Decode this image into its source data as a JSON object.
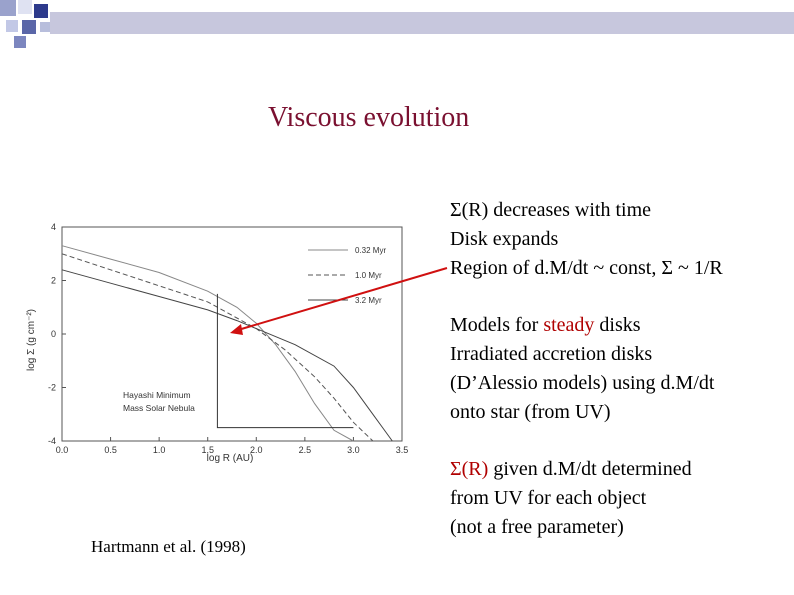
{
  "slide": {
    "title": "Viscous evolution",
    "caption": "Hartmann et al. (1998)",
    "colors": {
      "title": "#7a1030",
      "accent_red": "#b00000",
      "arrow": "#d01010",
      "deco_bar": "#c7c7dd"
    }
  },
  "block1": {
    "line1_sigma": "Σ",
    "line1_rest": "(R) decreases with time",
    "line2": "Disk expands",
    "line3": "Region of d.M/dt ~ const, Σ ~ 1/R"
  },
  "block2": {
    "line1_pre": "Models for ",
    "line1_red": "steady",
    "line1_post": " disks",
    "line2": "Irradiated accretion disks",
    "line3": "(D’Alessio models) using d.M/dt",
    "line4": "onto star (from UV)"
  },
  "block3": {
    "line1_red": "Σ(R)",
    "line1_post": " given d.M/dt determined",
    "line2": "from UV for each object",
    "line3": "(not a free parameter)"
  },
  "figure": {
    "ylabel": "log Σ (g cm⁻²)",
    "xlabel": "log R (AU)",
    "legend": [
      "0.32 Myr",
      "1.0 Myr",
      "3.2 Myr"
    ],
    "annotation_line1": "Hayashi Minimum",
    "annotation_line2": "Mass Solar Nebula",
    "x_ticks": [
      "0.0",
      "0.5",
      "1.0",
      "1.5",
      "2.0",
      "2.5",
      "3.0",
      "3.5"
    ],
    "y_ticks": [
      "4",
      "2",
      "0",
      "-2",
      "-4"
    ]
  },
  "chart_data": {
    "type": "line",
    "xlabel": "log R (AU)",
    "ylabel": "log Σ (g cm⁻²)",
    "xlim": [
      0.0,
      3.5
    ],
    "ylim": [
      -4,
      4
    ],
    "x_ticks": [
      0.0,
      0.5,
      1.0,
      1.5,
      2.0,
      2.5,
      3.0,
      3.5
    ],
    "y_ticks": [
      4,
      2,
      0,
      -2,
      -4
    ],
    "series": [
      {
        "name": "0.32 Myr",
        "x": [
          0.0,
          0.5,
          1.0,
          1.5,
          1.8,
          2.0,
          2.2,
          2.4,
          2.6,
          2.8,
          3.0
        ],
        "y": [
          3.3,
          2.8,
          2.3,
          1.6,
          1.0,
          0.4,
          -0.4,
          -1.4,
          -2.6,
          -3.6,
          -4.0
        ]
      },
      {
        "name": "1.0 Myr",
        "x": [
          0.0,
          0.5,
          1.0,
          1.5,
          1.8,
          2.0,
          2.3,
          2.6,
          2.8,
          3.0,
          3.2
        ],
        "y": [
          3.0,
          2.4,
          1.8,
          1.2,
          0.6,
          0.2,
          -0.6,
          -1.6,
          -2.4,
          -3.3,
          -4.0
        ]
      },
      {
        "name": "3.2 Myr",
        "x": [
          0.0,
          0.5,
          1.0,
          1.5,
          1.8,
          2.0,
          2.4,
          2.8,
          3.0,
          3.2,
          3.4
        ],
        "y": [
          2.4,
          1.9,
          1.4,
          0.9,
          0.5,
          0.2,
          -0.4,
          -1.2,
          -2.0,
          -3.0,
          -4.0
        ]
      },
      {
        "name": "Hayashi Minimum Mass Solar Nebula",
        "x": [
          1.6,
          1.6,
          3.0
        ],
        "y": [
          1.5,
          -3.5,
          -3.5
        ]
      }
    ],
    "grid": false,
    "legend_position": "top-right"
  }
}
